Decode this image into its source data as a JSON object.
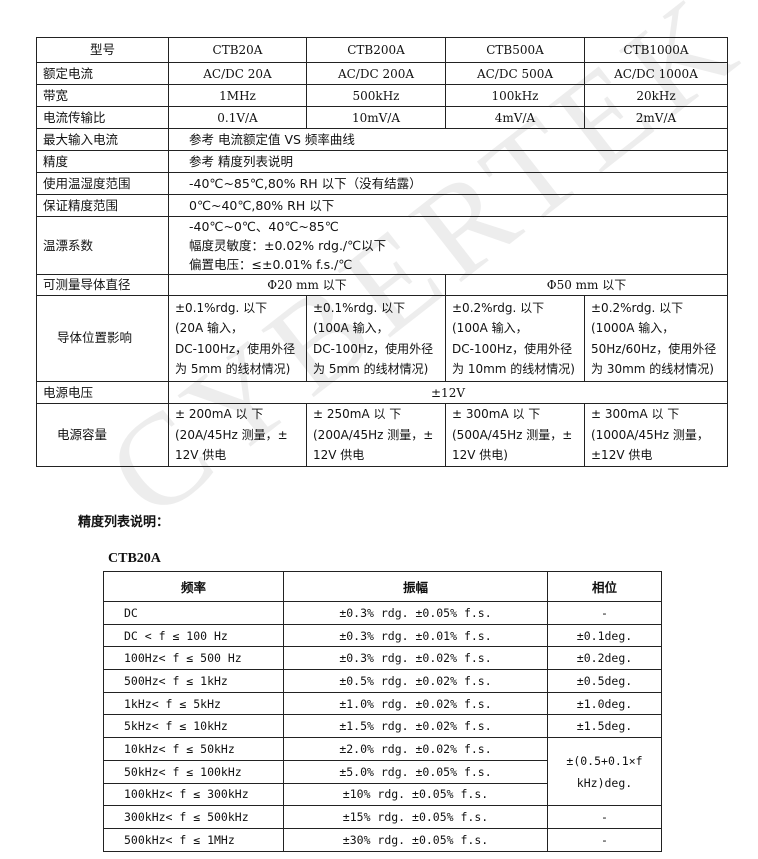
{
  "watermark": "CYBERTEK",
  "spec_table": {
    "header": [
      "型号",
      "CTB20A",
      "CTB200A",
      "CTB500A",
      "CTB1000A"
    ],
    "rated_current": {
      "label": "额定电流",
      "values": [
        "AC/DC 20A",
        "AC/DC 200A",
        "AC/DC 500A",
        "AC/DC 1000A"
      ]
    },
    "bandwidth": {
      "label": "带宽",
      "values": [
        "1MHz",
        "500kHz",
        "100kHz",
        "20kHz"
      ]
    },
    "ratio": {
      "label": "电流传输比",
      "values": [
        "0.1V/A",
        "10mV/A",
        "4mV/A",
        "2mV/A"
      ]
    },
    "max_input": {
      "label": "最大输入电流",
      "value": "参考 电流额定值 VS 频率曲线"
    },
    "accuracy": {
      "label": "精度",
      "value": "参考 精度列表说明"
    },
    "op_temp": {
      "label": "使用温湿度范围",
      "value": "-40℃~85℃,80% RH 以下（没有结露）"
    },
    "acc_temp": {
      "label": "保证精度范围",
      "value": "0℃~40℃,80% RH 以下"
    },
    "temp_coef": {
      "label": "温漂系数",
      "lines": [
        "-40℃~0℃、40℃~85℃",
        "幅度灵敏度：±0.02% rdg./℃以下",
        "偏置电压：≤±0.01% f.s./℃"
      ]
    },
    "diameter": {
      "label": "可测量导体直径",
      "values": [
        "Φ20 mm 以下",
        "Φ50 mm 以下"
      ]
    },
    "position": {
      "label": "导体位置影响",
      "values": [
        [
          "±0.1%rdg. 以下",
          "(20A 输入，",
          "DC-100Hz，使用外径",
          "为 5mm 的线材情况)"
        ],
        [
          "±0.1%rdg. 以下",
          "(100A 输入，",
          "DC-100Hz，使用外径",
          "为 5mm 的线材情况)"
        ],
        [
          "±0.2%rdg. 以下",
          "(100A 输入，",
          "DC-100Hz，使用外径",
          "为 10mm 的线材情况)"
        ],
        [
          "±0.2%rdg. 以下",
          "(1000A 输入，",
          "50Hz/60Hz，使用外径",
          "为 30mm 的线材情况)"
        ]
      ]
    },
    "supply_voltage": {
      "label": "电源电压",
      "value": "±12V"
    },
    "supply_capacity": {
      "label": "电源容量",
      "values": [
        [
          "± 200mA 以 下",
          "(20A/45Hz 测量，±",
          "12V 供电"
        ],
        [
          "± 250mA 以 下",
          "(200A/45Hz 测量，±",
          "12V 供电"
        ],
        [
          "± 300mA 以 下",
          "(500A/45Hz 测量，±",
          "12V 供电)"
        ],
        [
          "± 300mA 以 下",
          "(1000A/45Hz 测量，",
          "±12V 供电"
        ]
      ]
    }
  },
  "section_title": "精度列表说明：",
  "model_title": "CTB20A",
  "accuracy_table": {
    "headers": [
      "频率",
      "振幅",
      "相位"
    ],
    "rows": [
      [
        "DC",
        "±0.3% rdg. ±0.05% f.s.",
        "-"
      ],
      [
        "DC < f ≤ 100 Hz",
        "±0.3% rdg. ±0.01% f.s.",
        "±0.1deg."
      ],
      [
        "100Hz< f ≤ 500 Hz",
        "±0.3% rdg. ±0.02% f.s.",
        "±0.2deg."
      ],
      [
        "500Hz< f ≤ 1kHz",
        "±0.5% rdg. ±0.02% f.s.",
        "±0.5deg."
      ],
      [
        "1kHz< f ≤ 5kHz",
        "±1.0% rdg. ±0.02% f.s.",
        "±1.0deg."
      ],
      [
        "5kHz< f ≤ 10kHz",
        "±1.5% rdg. ±0.02% f.s.",
        "±1.5deg."
      ],
      [
        "10kHz< f ≤ 50kHz",
        "±2.0% rdg. ±0.02% f.s.",
        "±(0.5+0.1×f kHz)deg."
      ],
      [
        "50kHz< f ≤ 100kHz",
        "±5.0% rdg. ±0.05% f.s.",
        ""
      ],
      [
        "100kHz< f ≤ 300kHz",
        "±10% rdg. ±0.05% f.s.",
        ""
      ],
      [
        "300kHz< f ≤ 500kHz",
        "±15% rdg. ±0.05% f.s.",
        "-"
      ],
      [
        "500kHz< f ≤ 1MHz",
        "±30% rdg. ±0.05% f.s.",
        "-"
      ]
    ]
  }
}
